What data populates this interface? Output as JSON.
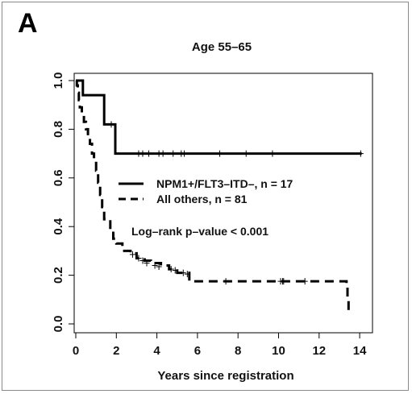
{
  "panel_label": "A",
  "chart_data": {
    "type": "line",
    "title": "Age 55–65",
    "xlabel": "Years since registration",
    "ylabel": "",
    "xlim": [
      0,
      14.5
    ],
    "ylim": [
      0,
      1.0
    ],
    "xticks": [
      0,
      2,
      4,
      6,
      8,
      10,
      12,
      14
    ],
    "yticks": [
      0.0,
      0.2,
      0.4,
      0.6,
      0.8,
      1.0
    ],
    "ytick_labels": [
      "0.0",
      "0.2",
      "0.4",
      "0.6",
      "0.8",
      "1.0"
    ],
    "grid": false,
    "legend": {
      "placement": "center-right",
      "entries": [
        "NPM1+/FLT3–ITD–, n = 17",
        "All others, n = 81"
      ]
    },
    "annotation": "Log–rank p–value < 0.001",
    "series": [
      {
        "name": "NPM1+/FLT3–ITD–, n = 17",
        "line_style": "solid",
        "color": "#000000",
        "steps": [
          [
            0,
            1.0
          ],
          [
            0.35,
            0.94
          ],
          [
            1.4,
            0.82
          ],
          [
            1.95,
            0.7
          ],
          [
            14.1,
            0.7
          ]
        ],
        "censored": [
          [
            1.75,
            0.82
          ],
          [
            3.1,
            0.7
          ],
          [
            3.3,
            0.7
          ],
          [
            3.6,
            0.7
          ],
          [
            4.1,
            0.7
          ],
          [
            4.3,
            0.7
          ],
          [
            4.8,
            0.7
          ],
          [
            5.2,
            0.7
          ],
          [
            5.35,
            0.7
          ],
          [
            7.1,
            0.7
          ],
          [
            8.4,
            0.7
          ],
          [
            9.7,
            0.7
          ],
          [
            14.05,
            0.7
          ]
        ]
      },
      {
        "name": "All others, n = 81",
        "line_style": "dashed",
        "color": "#000000",
        "steps": [
          [
            0,
            1.0
          ],
          [
            0.05,
            0.98
          ],
          [
            0.1,
            0.95
          ],
          [
            0.15,
            0.92
          ],
          [
            0.2,
            0.89
          ],
          [
            0.3,
            0.86
          ],
          [
            0.4,
            0.83
          ],
          [
            0.5,
            0.8
          ],
          [
            0.6,
            0.77
          ],
          [
            0.7,
            0.74
          ],
          [
            0.8,
            0.7
          ],
          [
            0.9,
            0.67
          ],
          [
            1.0,
            0.63
          ],
          [
            1.1,
            0.58
          ],
          [
            1.2,
            0.53
          ],
          [
            1.3,
            0.48
          ],
          [
            1.4,
            0.43
          ],
          [
            1.7,
            0.39
          ],
          [
            1.85,
            0.35
          ],
          [
            2.0,
            0.33
          ],
          [
            2.3,
            0.3
          ],
          [
            2.7,
            0.29
          ],
          [
            3.0,
            0.27
          ],
          [
            3.4,
            0.26
          ],
          [
            3.7,
            0.25
          ],
          [
            4.2,
            0.24
          ],
          [
            4.6,
            0.225
          ],
          [
            5.0,
            0.21
          ],
          [
            5.6,
            0.175
          ],
          [
            13.35,
            0.175
          ],
          [
            13.35,
            0.15
          ],
          [
            13.4,
            0.1
          ],
          [
            13.45,
            0.05
          ]
        ],
        "censored": [
          [
            2.8,
            0.285
          ],
          [
            3.1,
            0.27
          ],
          [
            3.3,
            0.26
          ],
          [
            3.5,
            0.25
          ],
          [
            3.9,
            0.24
          ],
          [
            4.1,
            0.235
          ],
          [
            4.7,
            0.225
          ],
          [
            4.9,
            0.22
          ],
          [
            5.3,
            0.21
          ],
          [
            5.5,
            0.205
          ],
          [
            7.4,
            0.175
          ],
          [
            10.1,
            0.175
          ],
          [
            10.2,
            0.175
          ],
          [
            10.25,
            0.175
          ],
          [
            11.3,
            0.175
          ]
        ]
      }
    ]
  }
}
